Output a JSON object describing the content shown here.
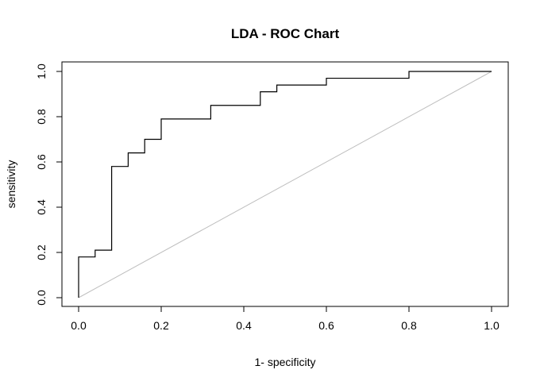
{
  "chart_data": {
    "type": "line",
    "title": "LDA - ROC Chart",
    "xlabel": "1- specificity",
    "ylabel": "sensitivity",
    "xlim": [
      0,
      1
    ],
    "ylim": [
      0,
      1
    ],
    "x_ticks": [
      "0.0",
      "0.2",
      "0.4",
      "0.6",
      "0.8",
      "1.0"
    ],
    "y_ticks": [
      "0.0",
      "0.2",
      "0.4",
      "0.6",
      "0.8",
      "1.0"
    ],
    "grid": false,
    "series": [
      {
        "style": "step",
        "color": "#000000",
        "points": [
          [
            0.0,
            0.0
          ],
          [
            0.0,
            0.18
          ],
          [
            0.04,
            0.18
          ],
          [
            0.04,
            0.21
          ],
          [
            0.08,
            0.21
          ],
          [
            0.08,
            0.58
          ],
          [
            0.12,
            0.58
          ],
          [
            0.12,
            0.64
          ],
          [
            0.16,
            0.64
          ],
          [
            0.16,
            0.7
          ],
          [
            0.2,
            0.7
          ],
          [
            0.2,
            0.79
          ],
          [
            0.32,
            0.79
          ],
          [
            0.32,
            0.85
          ],
          [
            0.44,
            0.85
          ],
          [
            0.44,
            0.91
          ],
          [
            0.48,
            0.91
          ],
          [
            0.48,
            0.94
          ],
          [
            0.6,
            0.94
          ],
          [
            0.6,
            0.97
          ],
          [
            0.8,
            0.97
          ],
          [
            0.8,
            1.0
          ],
          [
            1.0,
            1.0
          ]
        ]
      },
      {
        "style": "reference",
        "color": "#bebebe",
        "points": [
          [
            0,
            0
          ],
          [
            1,
            1
          ]
        ]
      }
    ]
  }
}
